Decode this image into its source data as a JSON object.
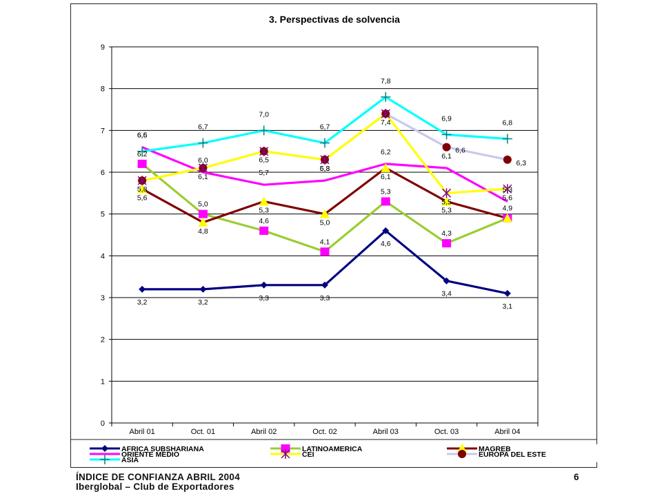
{
  "chart_data": {
    "type": "line",
    "title": "3. Perspectivas de solvencia",
    "xlabel": "",
    "ylabel": "",
    "categories": [
      "Abril 01",
      "Oct. 01",
      "Abril 02",
      "Oct. 02",
      "Abril 03",
      "Oct. 03",
      "Abril 04"
    ],
    "ylim": [
      0,
      9
    ],
    "yticks": [
      "0",
      "1",
      "2",
      "3",
      "4",
      "5",
      "6",
      "7",
      "8",
      "9"
    ],
    "grid": true,
    "legend_position": "bottom",
    "series": [
      {
        "name": "AFRICA SUBSHARIANA",
        "color": "#000080",
        "marker": "diamond",
        "values": [
          3.2,
          3.2,
          3.3,
          3.3,
          4.6,
          3.4,
          3.1
        ],
        "labels": [
          "3,2",
          "3,2",
          "3,3",
          "3,3",
          "4,6",
          "3,4",
          "3,1"
        ]
      },
      {
        "name": "LATINOAMERICA",
        "color": "#9ACD32",
        "marker": "square",
        "values": [
          6.2,
          5.0,
          4.6,
          4.1,
          5.3,
          4.3,
          4.9
        ],
        "labels": [
          "6,2",
          "5,0",
          "4,6",
          "4,1",
          "5,3",
          "4,3",
          "4,9"
        ]
      },
      {
        "name": "MAGREB",
        "color": "#800000",
        "marker": "triangle",
        "values": [
          5.6,
          4.8,
          5.3,
          5.0,
          6.1,
          5.3,
          4.9
        ],
        "labels": [
          "5,6",
          "4,8",
          "5,3",
          "5,0",
          "6,1",
          "5,3",
          ""
        ]
      },
      {
        "name": "ORIENTE MEDIO",
        "color": "#FF00FF",
        "marker": "none",
        "values": [
          6.6,
          6.0,
          5.7,
          5.8,
          6.2,
          6.1,
          5.3
        ],
        "labels": [
          "6,6",
          "6,0",
          "5,7",
          "5,8",
          "6,2",
          "6,1",
          "5,3"
        ]
      },
      {
        "name": "CEI",
        "color": "#FFFF00",
        "marker": "star",
        "values": [
          5.8,
          6.1,
          6.5,
          6.3,
          7.4,
          5.5,
          5.6
        ],
        "labels": [
          "5,8",
          "6,1",
          "6,5",
          "6,3",
          "7,4",
          "5,5",
          "5,6"
        ]
      },
      {
        "name": "EUROPA DEL ESTE",
        "color": "#C8C8F0",
        "marker": "circle",
        "values": [
          5.8,
          6.1,
          6.5,
          6.3,
          7.4,
          6.6,
          6.3
        ],
        "labels": [
          "",
          "",
          "",
          "",
          "",
          "6,6",
          "6,3"
        ]
      },
      {
        "name": "ASIA",
        "color": "#00FFFF",
        "marker": "plus",
        "values": [
          6.5,
          6.7,
          7.0,
          6.7,
          7.8,
          6.9,
          6.8
        ],
        "labels": [
          "6,5",
          "6,7",
          "7,0",
          "6,7",
          "7,8",
          "6,9",
          "6,8"
        ]
      }
    ]
  },
  "footer": {
    "line1": "ÍNDICE DE CONFIANZA ABRIL 2004",
    "line2": "Iberglobal – Club de Exportadores",
    "page_number": "6"
  }
}
